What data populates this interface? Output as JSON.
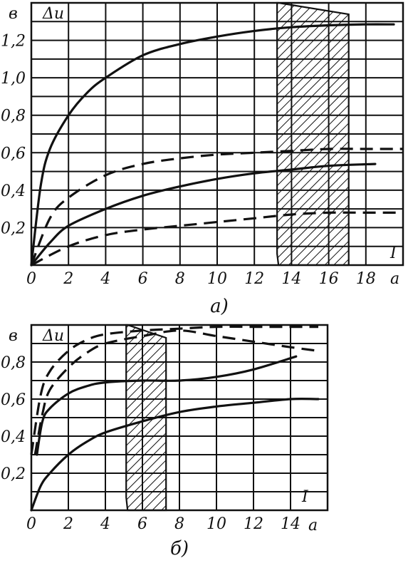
{
  "chart_data": [
    {
      "id": "a",
      "type": "line",
      "caption": "а)",
      "y_unit": "в",
      "y_symbol": "Δu",
      "x_symbol": "I",
      "x_unit": "а",
      "xlim": [
        0,
        20
      ],
      "ylim": [
        0,
        1.4
      ],
      "x_ticks": [
        "0",
        "2",
        "4",
        "6",
        "8",
        "10",
        "12",
        "14",
        "16",
        "18"
      ],
      "y_ticks": [
        "0,2",
        "0,4",
        "0,6",
        "0,8",
        "1,0",
        "1,2"
      ],
      "shaded_band": [
        13.3,
        17.0
      ],
      "series": [
        {
          "style": "solid",
          "x": [
            0,
            0.5,
            1,
            2,
            3,
            4,
            6,
            8,
            10,
            12,
            14,
            16,
            18,
            19.5
          ],
          "y": [
            0,
            0.42,
            0.62,
            0.8,
            0.92,
            1.0,
            1.12,
            1.18,
            1.22,
            1.25,
            1.27,
            1.28,
            1.285,
            1.285
          ]
        },
        {
          "style": "dashed",
          "x": [
            0,
            1,
            2,
            4,
            6,
            8,
            10,
            12,
            14,
            16,
            18,
            20
          ],
          "y": [
            0,
            0.25,
            0.36,
            0.48,
            0.54,
            0.57,
            0.59,
            0.6,
            0.61,
            0.62,
            0.62,
            0.62
          ]
        },
        {
          "style": "solid",
          "x": [
            0,
            1,
            2,
            4,
            6,
            8,
            10,
            12,
            14,
            16,
            18.5
          ],
          "y": [
            0,
            0.12,
            0.21,
            0.3,
            0.37,
            0.42,
            0.46,
            0.49,
            0.51,
            0.53,
            0.54
          ]
        },
        {
          "style": "dashed",
          "x": [
            0,
            2,
            4,
            6,
            8,
            10,
            12,
            14,
            16,
            18,
            20
          ],
          "y": [
            0,
            0.1,
            0.16,
            0.19,
            0.21,
            0.23,
            0.25,
            0.27,
            0.28,
            0.28,
            0.28
          ]
        }
      ]
    },
    {
      "id": "b",
      "type": "line",
      "caption": "б)",
      "y_unit": "в",
      "y_symbol": "Δu",
      "x_symbol": "I",
      "x_unit": "а",
      "xlim": [
        0,
        16
      ],
      "ylim": [
        0,
        1.0
      ],
      "x_ticks": [
        "0",
        "2",
        "4",
        "6",
        "8",
        "10",
        "12",
        "14"
      ],
      "y_ticks": [
        "0,2",
        "0,4",
        "0,6",
        "0,8"
      ],
      "shaded_band": [
        5.2,
        7.2
      ],
      "series": [
        {
          "style": "dashed",
          "x": [
            0,
            0.5,
            1,
            2,
            3,
            4,
            6,
            8,
            10,
            12,
            14,
            15.5
          ],
          "y": [
            0.3,
            0.62,
            0.75,
            0.86,
            0.92,
            0.95,
            0.97,
            0.98,
            0.99,
            0.99,
            0.99,
            0.99
          ]
        },
        {
          "style": "dashed",
          "x": [
            0.2,
            0.6,
            1,
            2,
            3,
            4,
            6,
            8,
            10,
            12,
            14,
            15.5
          ],
          "y": [
            0.3,
            0.52,
            0.65,
            0.77,
            0.85,
            0.9,
            0.94,
            0.97,
            0.94,
            0.91,
            0.88,
            0.86
          ]
        },
        {
          "style": "solid",
          "x": [
            0.3,
            0.6,
            1,
            2,
            3,
            4,
            6,
            8,
            10,
            12,
            14.3
          ],
          "y": [
            0.3,
            0.48,
            0.55,
            0.63,
            0.67,
            0.69,
            0.7,
            0.7,
            0.72,
            0.76,
            0.83
          ]
        },
        {
          "style": "solid",
          "x": [
            0,
            0.5,
            1,
            2,
            3,
            4,
            6,
            8,
            10,
            12,
            14,
            15.5
          ],
          "y": [
            0,
            0.13,
            0.2,
            0.3,
            0.37,
            0.42,
            0.48,
            0.53,
            0.56,
            0.58,
            0.6,
            0.6
          ]
        }
      ]
    }
  ]
}
